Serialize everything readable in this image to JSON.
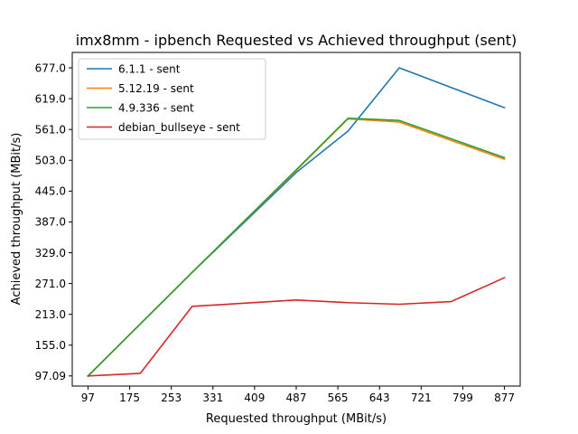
{
  "chart_data": {
    "type": "line",
    "title": "imx8mm - ipbench Requested vs Achieved throughput (sent)",
    "xlabel": "Requested throughput (MBit/s)",
    "ylabel": "Achieved throughput (MBit/s)",
    "xlim": [
      67.5,
      906.5
    ],
    "ylim": [
      78.0,
      706.0
    ],
    "xticks": [
      97,
      175,
      253,
      331,
      409,
      487,
      565,
      643,
      721,
      799,
      877
    ],
    "yticks": [
      97.09,
      155.0,
      213.0,
      271.0,
      329.0,
      387.0,
      445.0,
      503.0,
      561.0,
      619.0,
      677.0
    ],
    "ytick_labels": [
      "97.09",
      "155.0",
      "213.0",
      "271.0",
      "329.0",
      "387.0",
      "445.0",
      "503.0",
      "561.0",
      "619.0",
      "677.0"
    ],
    "grid": false,
    "legend_position": "upper left",
    "series": [
      {
        "name": "6.1.1 - sent",
        "color": "#1f77b4",
        "points": [
          [
            97,
            97
          ],
          [
            292,
            292
          ],
          [
            487,
            480
          ],
          [
            584,
            558
          ],
          [
            680,
            677
          ],
          [
            877,
            602
          ]
        ]
      },
      {
        "name": "5.12.19 - sent",
        "color": "#ff7f0e",
        "points": [
          [
            97,
            97
          ],
          [
            292,
            292
          ],
          [
            487,
            484
          ],
          [
            584,
            581
          ],
          [
            680,
            575
          ],
          [
            877,
            505
          ]
        ]
      },
      {
        "name": "4.9.336 - sent",
        "color": "#2ca02c",
        "points": [
          [
            97,
            97
          ],
          [
            292,
            292
          ],
          [
            487,
            485
          ],
          [
            584,
            582
          ],
          [
            680,
            578
          ],
          [
            877,
            508
          ]
        ]
      },
      {
        "name": "debian_bullseye - sent",
        "color": "#d62728",
        "points": [
          [
            97,
            97
          ],
          [
            195,
            102
          ],
          [
            292,
            228
          ],
          [
            487,
            240
          ],
          [
            584,
            235
          ],
          [
            680,
            232
          ],
          [
            777,
            237
          ],
          [
            877,
            282
          ]
        ]
      }
    ]
  }
}
